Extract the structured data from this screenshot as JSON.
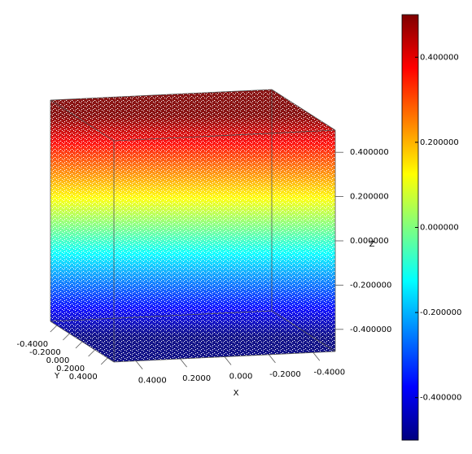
{
  "chart_data": {
    "type": "scatter3d",
    "xlabel": "X",
    "ylabel": "Y",
    "zlabel": "Z",
    "xlim": [
      -0.5,
      0.5
    ],
    "ylim": [
      -0.5,
      0.5
    ],
    "zlim": [
      -0.5,
      0.5
    ],
    "xticks": [
      {
        "value": 0.4,
        "label": "0.4000"
      },
      {
        "value": 0.2,
        "label": "0.2000"
      },
      {
        "value": 0,
        "label": "0.000"
      },
      {
        "value": -0.2,
        "label": "-0.2000"
      },
      {
        "value": -0.4,
        "label": "-0.4000"
      }
    ],
    "yticks": [
      {
        "value": -0.4,
        "label": "-0.4000"
      },
      {
        "value": -0.2,
        "label": "-0.2000"
      },
      {
        "value": 0,
        "label": "0.000"
      },
      {
        "value": 0.2,
        "label": "0.2000"
      },
      {
        "value": 0.4,
        "label": "0.4000"
      }
    ],
    "zticks": [
      {
        "value": 0.4,
        "label": "0.400000"
      },
      {
        "value": 0.2,
        "label": "0.200000"
      },
      {
        "value": 0,
        "label": "0.000000"
      },
      {
        "value": -0.2,
        "label": "-0.200000"
      },
      {
        "value": -0.4,
        "label": "-0.400000"
      }
    ],
    "grid": true,
    "colormap": [
      "#00007f",
      "#0000ff",
      "#007fff",
      "#00ffff",
      "#7fff7f",
      "#ffff00",
      "#ff7f00",
      "#ff0000",
      "#7f0000"
    ],
    "clim": [
      -0.5,
      0.5
    ],
    "cticks": [
      {
        "value": 0.4,
        "label": "0.400000"
      },
      {
        "value": 0.2,
        "label": "0.200000"
      },
      {
        "value": 0,
        "label": "0.000000"
      },
      {
        "value": -0.2,
        "label": "-0.200000"
      },
      {
        "value": -0.4,
        "label": "-0.400000"
      }
    ]
  }
}
